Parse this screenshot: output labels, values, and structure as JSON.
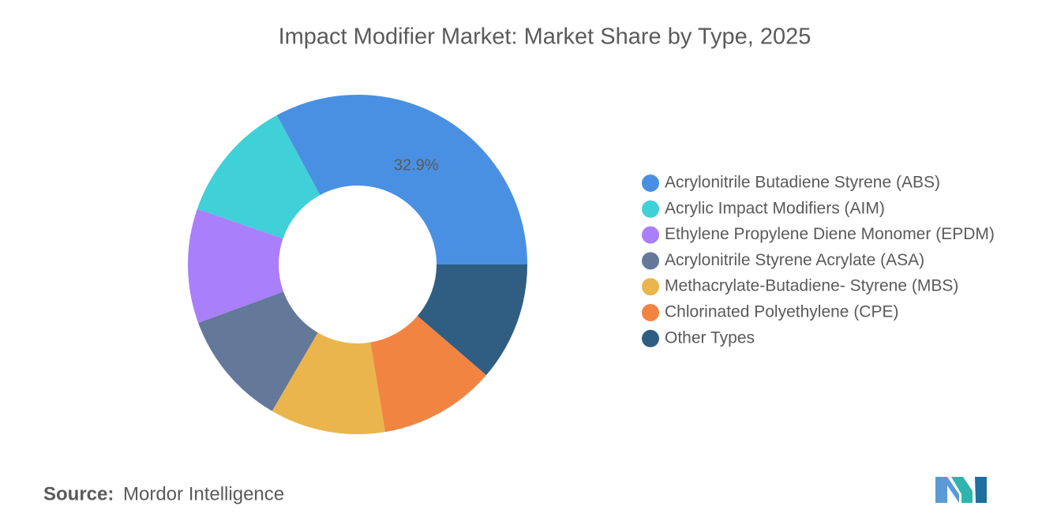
{
  "chart_data": {
    "type": "donut",
    "title": "Impact Modifier Market: Market Share by Type, 2025",
    "categories": [
      "Acrylonitrile Butadiene Styrene (ABS)",
      "Acrylic Impact Modifiers (AIM)",
      "Ethylene Propylene Diene Monomer (EPDM)",
      "Acrylonitrile Styrene Acrylate (ASA)",
      "Methacrylate-Butadiene- Styrene (MBS)",
      "Chlorinated Polyethylene (CPE)",
      "Other Types"
    ],
    "values": [
      32.9,
      11.8,
      10.9,
      11.0,
      11.0,
      11.1,
      11.3
    ],
    "value_labels": [
      "32.9%",
      null,
      null,
      null,
      null,
      null,
      null
    ],
    "colors": [
      "#4a90e2",
      "#40d0d8",
      "#a97ffb",
      "#647899",
      "#eab54c",
      "#f28442",
      "#2f5e82"
    ],
    "legend": "right",
    "source_label": "Source:",
    "source": "Mordor Intelligence"
  }
}
